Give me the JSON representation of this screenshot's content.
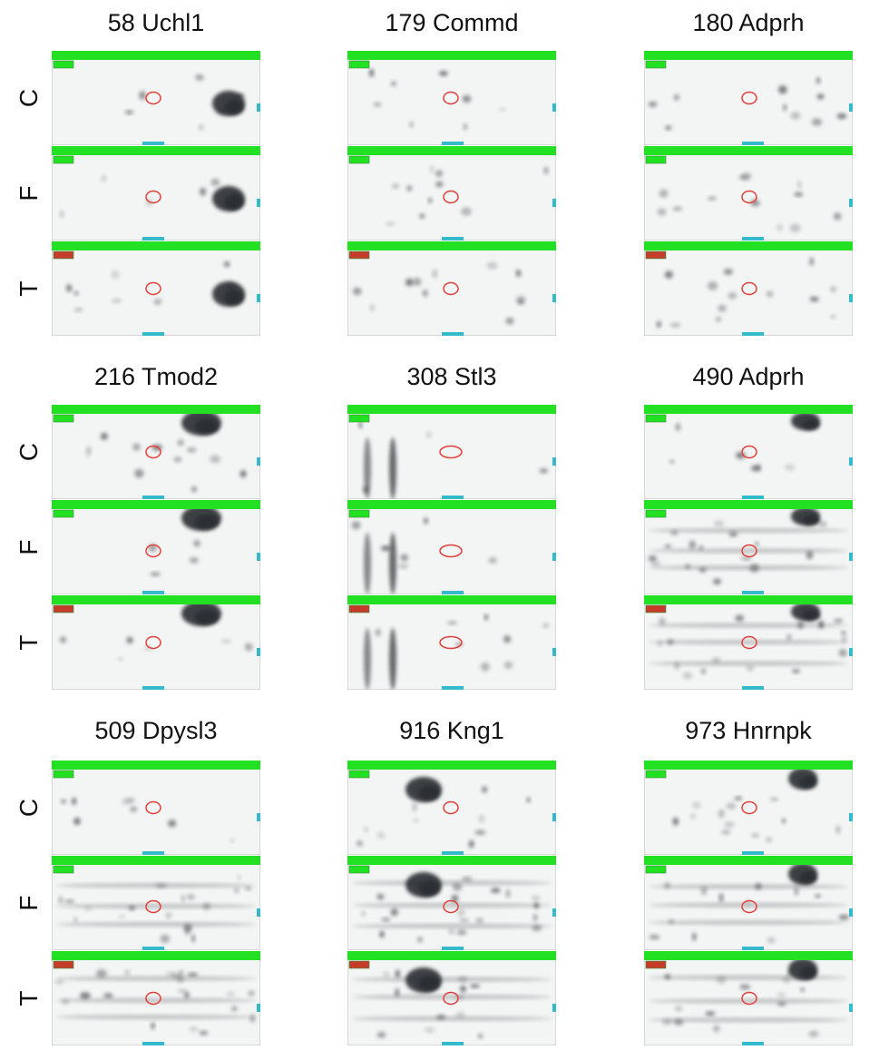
{
  "figure": {
    "row_labels": [
      "C",
      "F",
      "T"
    ],
    "groups": [
      {
        "title": "58 Uchl1"
      },
      {
        "title": "179 Commd"
      },
      {
        "title": "180 Adprh"
      },
      {
        "title": "216 Tmod2"
      },
      {
        "title": "308 Stl3"
      },
      {
        "title": "490 Adprh"
      },
      {
        "title": "509 Dpysl3"
      },
      {
        "title": "916 Kng1"
      },
      {
        "title": "973 Hnrnpk"
      }
    ]
  },
  "colors": {
    "toolbar_green": "#22e022",
    "marker_cyan": "#33bbcc",
    "outline_red": "#e0403a",
    "gel_background": "#f3f4f4",
    "spot_dark": "#2c2f33"
  }
}
